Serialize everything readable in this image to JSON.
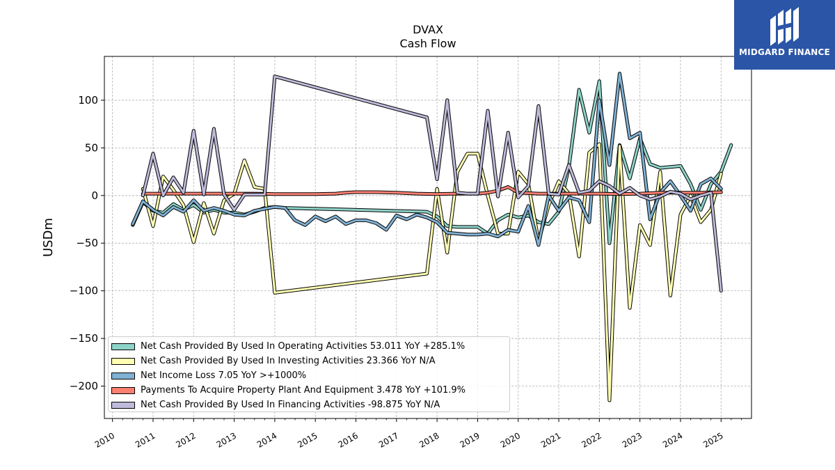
{
  "logo": {
    "text": "MIDGARD FINANCE",
    "icon": "midgard-logo-icon"
  },
  "chart_data": {
    "type": "line",
    "title": "DVAX",
    "subtitle": "Cash Flow",
    "xlabel": "",
    "ylabel": "USDm",
    "xlim": [
      2009.8,
      2025.75
    ],
    "ylim": [
      -234,
      146
    ],
    "yticks": [
      -200,
      -150,
      -100,
      -50,
      0,
      50,
      100
    ],
    "xticks": [
      "2010",
      "2011",
      "2012",
      "2013",
      "2014",
      "2015",
      "2016",
      "2017",
      "2018",
      "2019",
      "2020",
      "2021",
      "2022",
      "2023",
      "2024",
      "2025"
    ],
    "grid": true,
    "legend_position": "lower-left",
    "series": [
      {
        "name": "Net Cash Provided By Used In Operating Activities",
        "legend": "Net Cash Provided By Used In Operating Activities  53.011 YoY +285.1%",
        "color": "#8dd3c7",
        "points": [
          [
            2010.5,
            -31
          ],
          [
            2010.75,
            -7
          ],
          [
            2011.0,
            -16
          ],
          [
            2011.25,
            -18
          ],
          [
            2011.5,
            -9
          ],
          [
            2011.75,
            -15
          ],
          [
            2012.0,
            -10
          ],
          [
            2012.25,
            -18
          ],
          [
            2012.5,
            -15
          ],
          [
            2012.75,
            -18
          ],
          [
            2013.0,
            -18
          ],
          [
            2013.25,
            -20
          ],
          [
            2013.5,
            -17
          ],
          [
            2013.75,
            -13
          ],
          [
            2014.0,
            -12
          ],
          [
            2014.25,
            -13
          ],
          [
            2017.75,
            -17
          ],
          [
            2018.0,
            -22
          ],
          [
            2018.25,
            -32
          ],
          [
            2018.5,
            -33
          ],
          [
            2018.75,
            -33
          ],
          [
            2019.0,
            -33
          ],
          [
            2019.25,
            -40
          ],
          [
            2019.5,
            -26
          ],
          [
            2019.75,
            -20
          ],
          [
            2020.0,
            -23
          ],
          [
            2020.25,
            -21
          ],
          [
            2020.5,
            -28
          ],
          [
            2020.75,
            -30
          ],
          [
            2021.0,
            -17
          ],
          [
            2021.25,
            30
          ],
          [
            2021.5,
            111
          ],
          [
            2021.75,
            66
          ],
          [
            2022.0,
            120
          ],
          [
            2022.25,
            -50
          ],
          [
            2022.5,
            53
          ],
          [
            2022.75,
            18
          ],
          [
            2023.0,
            60
          ],
          [
            2023.25,
            33
          ],
          [
            2023.5,
            29
          ],
          [
            2023.75,
            30
          ],
          [
            2024.0,
            31
          ],
          [
            2024.25,
            12
          ],
          [
            2024.5,
            -15
          ],
          [
            2024.75,
            12
          ],
          [
            2025.0,
            25
          ],
          [
            2025.25,
            53
          ]
        ]
      },
      {
        "name": "Net Cash Provided By Used In Investing Activities",
        "legend": "Net Cash Provided By Used In Investing Activities  23.366 YoY N/A",
        "color": "#ffffb3",
        "points": [
          [
            2010.75,
            7
          ],
          [
            2011.0,
            -32
          ],
          [
            2011.25,
            20
          ],
          [
            2011.5,
            6
          ],
          [
            2011.75,
            -10
          ],
          [
            2012.0,
            -49
          ],
          [
            2012.25,
            -8
          ],
          [
            2012.5,
            -40
          ],
          [
            2012.75,
            -5
          ],
          [
            2013.0,
            2
          ],
          [
            2013.25,
            37
          ],
          [
            2013.5,
            9
          ],
          [
            2013.75,
            7
          ],
          [
            2014.0,
            -102
          ],
          [
            2017.75,
            -82
          ],
          [
            2018.0,
            7
          ],
          [
            2018.25,
            -60
          ],
          [
            2018.5,
            25
          ],
          [
            2018.75,
            44
          ],
          [
            2019.0,
            44
          ],
          [
            2019.25,
            0
          ],
          [
            2019.5,
            -40
          ],
          [
            2019.75,
            -40
          ],
          [
            2020.0,
            25
          ],
          [
            2020.25,
            12
          ],
          [
            2020.5,
            -48
          ],
          [
            2020.75,
            -10
          ],
          [
            2021.0,
            15
          ],
          [
            2021.25,
            2
          ],
          [
            2021.5,
            -64
          ],
          [
            2021.75,
            45
          ],
          [
            2022.0,
            54
          ],
          [
            2022.25,
            -215
          ],
          [
            2022.5,
            52
          ],
          [
            2022.75,
            -118
          ],
          [
            2023.0,
            -31
          ],
          [
            2023.25,
            -52
          ],
          [
            2023.5,
            25
          ],
          [
            2023.75,
            -105
          ],
          [
            2024.0,
            -20
          ],
          [
            2024.25,
            0
          ],
          [
            2024.5,
            -28
          ],
          [
            2024.75,
            -15
          ],
          [
            2025.0,
            23
          ]
        ]
      },
      {
        "name": "Net Income Loss",
        "legend": "Net Income Loss  7.05 YoY >+1000%",
        "color": "#80b1d3",
        "points": [
          [
            2010.5,
            -30
          ],
          [
            2010.75,
            -6
          ],
          [
            2011.0,
            -15
          ],
          [
            2011.25,
            -21
          ],
          [
            2011.5,
            -12
          ],
          [
            2011.75,
            -17
          ],
          [
            2012.0,
            -5
          ],
          [
            2012.25,
            -16
          ],
          [
            2012.5,
            -13
          ],
          [
            2012.75,
            -16
          ],
          [
            2013.0,
            -20
          ],
          [
            2013.25,
            -21
          ],
          [
            2013.5,
            -16
          ],
          [
            2013.75,
            -14
          ],
          [
            2014.0,
            -12
          ],
          [
            2014.25,
            -13
          ],
          [
            2014.5,
            -26
          ],
          [
            2014.75,
            -31
          ],
          [
            2015.0,
            -22
          ],
          [
            2015.25,
            -27
          ],
          [
            2015.5,
            -22
          ],
          [
            2015.75,
            -30
          ],
          [
            2016.0,
            -26
          ],
          [
            2016.25,
            -26
          ],
          [
            2016.5,
            -29
          ],
          [
            2016.75,
            -36
          ],
          [
            2017.0,
            -21
          ],
          [
            2017.25,
            -25
          ],
          [
            2017.5,
            -20
          ],
          [
            2017.75,
            -23
          ],
          [
            2018.0,
            -28
          ],
          [
            2018.25,
            -39
          ],
          [
            2018.5,
            -40
          ],
          [
            2018.75,
            -41
          ],
          [
            2019.0,
            -41
          ],
          [
            2019.25,
            -40
          ],
          [
            2019.5,
            -43
          ],
          [
            2019.75,
            -36
          ],
          [
            2020.0,
            -38
          ],
          [
            2020.25,
            -11
          ],
          [
            2020.5,
            -52
          ],
          [
            2020.75,
            0
          ],
          [
            2021.0,
            -16
          ],
          [
            2021.25,
            -2
          ],
          [
            2021.5,
            -5
          ],
          [
            2021.75,
            -28
          ],
          [
            2022.0,
            100
          ],
          [
            2022.25,
            32
          ],
          [
            2022.5,
            128
          ],
          [
            2022.75,
            60
          ],
          [
            2023.0,
            66
          ],
          [
            2023.25,
            -25
          ],
          [
            2023.5,
            3
          ],
          [
            2023.75,
            15
          ],
          [
            2024.0,
            0
          ],
          [
            2024.25,
            -16
          ],
          [
            2024.5,
            12
          ],
          [
            2024.75,
            18
          ],
          [
            2025.0,
            7
          ]
        ]
      },
      {
        "name": "Payments To Acquire Property Plant And Equipment",
        "legend": "Payments To Acquire Property Plant And Equipment  3.478 YoY +101.9%",
        "color": "#fb8072",
        "points": [
          [
            2010.75,
            2
          ],
          [
            2011.0,
            2
          ],
          [
            2011.5,
            2
          ],
          [
            2012.0,
            2
          ],
          [
            2012.5,
            2
          ],
          [
            2013.0,
            2
          ],
          [
            2013.5,
            2
          ],
          [
            2014.0,
            1.5
          ],
          [
            2014.5,
            1.5
          ],
          [
            2015.0,
            1.5
          ],
          [
            2015.5,
            2
          ],
          [
            2015.75,
            3
          ],
          [
            2016.0,
            3.5
          ],
          [
            2016.5,
            3.5
          ],
          [
            2017.0,
            3
          ],
          [
            2017.5,
            2
          ],
          [
            2018.0,
            1.5
          ],
          [
            2018.5,
            2
          ],
          [
            2019.0,
            2
          ],
          [
            2019.25,
            3
          ],
          [
            2019.5,
            5
          ],
          [
            2019.75,
            9
          ],
          [
            2020.0,
            3
          ],
          [
            2020.5,
            2
          ],
          [
            2021.0,
            2
          ],
          [
            2021.5,
            2
          ],
          [
            2022.0,
            2
          ],
          [
            2022.5,
            1.5
          ],
          [
            2023.0,
            2
          ],
          [
            2023.5,
            3
          ],
          [
            2024.0,
            3
          ],
          [
            2024.5,
            3
          ],
          [
            2025.0,
            3.5
          ]
        ]
      },
      {
        "name": "Net Cash Provided By Used In Financing Activities",
        "legend": "Net Cash Provided By Used In Financing Activities  -98.875 YoY N/A",
        "color": "#bebada",
        "points": [
          [
            2010.75,
            0
          ],
          [
            2011.0,
            44
          ],
          [
            2011.25,
            0
          ],
          [
            2011.5,
            19
          ],
          [
            2011.75,
            3
          ],
          [
            2012.0,
            68
          ],
          [
            2012.25,
            1
          ],
          [
            2012.5,
            70
          ],
          [
            2012.75,
            1
          ],
          [
            2013.0,
            -15
          ],
          [
            2013.25,
            1
          ],
          [
            2013.5,
            1
          ],
          [
            2013.75,
            1
          ],
          [
            2014.0,
            125
          ],
          [
            2017.75,
            82
          ],
          [
            2018.0,
            17
          ],
          [
            2018.25,
            100
          ],
          [
            2018.5,
            3
          ],
          [
            2018.75,
            2
          ],
          [
            2019.0,
            2
          ],
          [
            2019.25,
            89
          ],
          [
            2019.5,
            -1
          ],
          [
            2019.75,
            66
          ],
          [
            2020.0,
            -2
          ],
          [
            2020.25,
            10
          ],
          [
            2020.5,
            94
          ],
          [
            2020.75,
            2
          ],
          [
            2021.0,
            1
          ],
          [
            2021.25,
            32
          ],
          [
            2021.5,
            3
          ],
          [
            2021.75,
            5
          ],
          [
            2022.0,
            15
          ],
          [
            2022.25,
            10
          ],
          [
            2022.5,
            2
          ],
          [
            2022.75,
            8
          ],
          [
            2023.0,
            0
          ],
          [
            2023.25,
            -4
          ],
          [
            2023.5,
            -1
          ],
          [
            2023.75,
            4
          ],
          [
            2024.0,
            2
          ],
          [
            2024.25,
            -4
          ],
          [
            2024.5,
            0
          ],
          [
            2024.75,
            3
          ],
          [
            2025.0,
            -100
          ]
        ]
      }
    ]
  }
}
